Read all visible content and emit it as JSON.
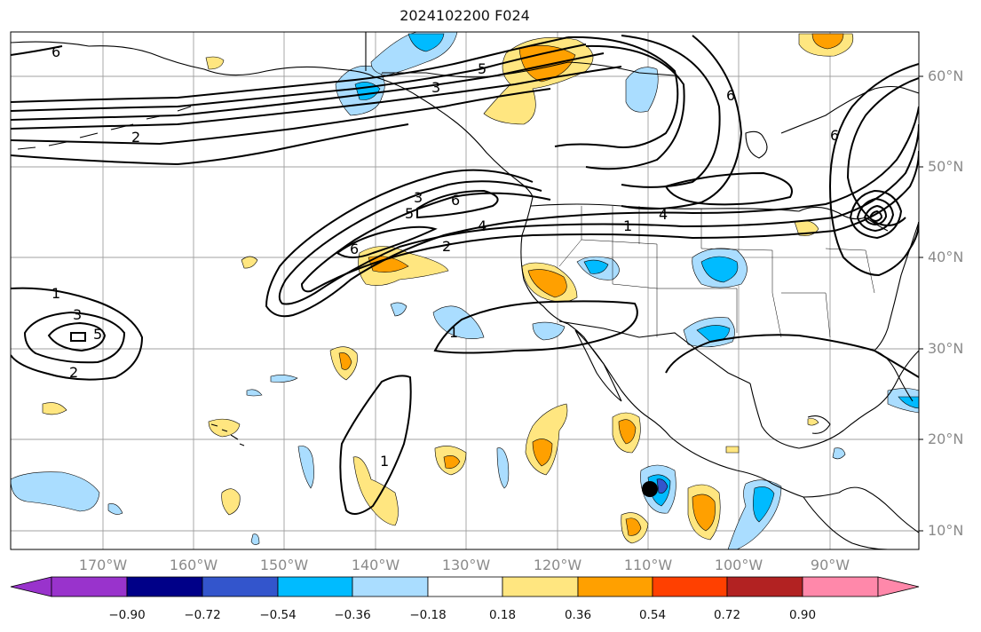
{
  "title": "2024102200 F024",
  "map": {
    "lat_labels": [
      "60°N",
      "50°N",
      "40°N",
      "30°N",
      "20°N",
      "10°N"
    ],
    "lon_labels": [
      "170°W",
      "160°W",
      "150°W",
      "140°W",
      "130°W",
      "120°W",
      "110°W",
      "100°W",
      "90°W"
    ],
    "contour_labels": [
      "6",
      "2",
      "3",
      "5",
      "6",
      "6",
      "3",
      "5",
      "6",
      "4",
      "2",
      "1",
      "4",
      "1",
      "3",
      "2",
      "1",
      "1",
      "6",
      "5"
    ],
    "marker": "black-dot",
    "colors": {
      "gridline": "#999999",
      "coastline": "#000000",
      "contour": "#000000"
    }
  },
  "colorbar": {
    "ticks": [
      "−0.90",
      "−0.72",
      "−0.54",
      "−0.36",
      "−0.18",
      "0.18",
      "0.36",
      "0.54",
      "0.72",
      "0.90"
    ],
    "colors": [
      "#9933cc",
      "#000088",
      "#3355cc",
      "#00bbff",
      "#aaddff",
      "#ffffff",
      "#ffe680",
      "#ffa000",
      "#ff4000",
      "#b22222",
      "#ff88aa"
    ]
  }
}
